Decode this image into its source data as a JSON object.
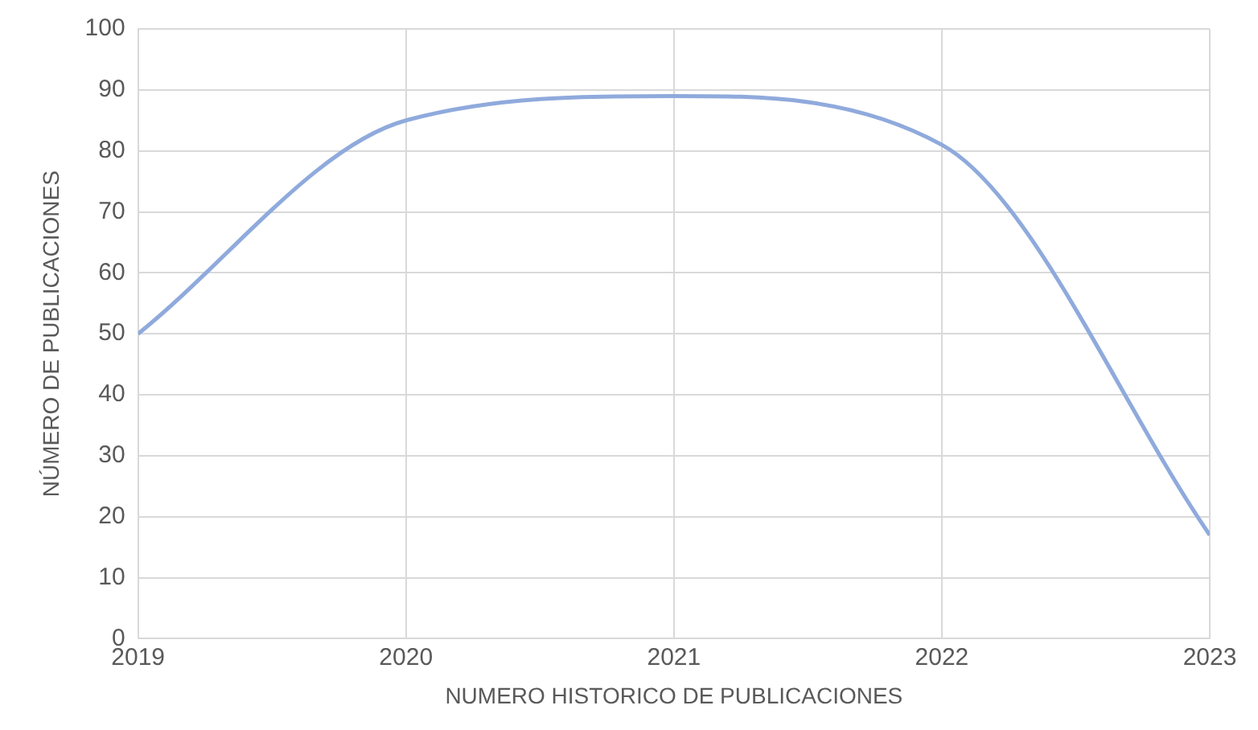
{
  "chart_data": {
    "type": "line",
    "xlabel": "NUMERO HISTORICO DE PUBLICACIONES",
    "ylabel": "NÚMERO DE PUBLICACIONES",
    "x": [
      2019,
      2020,
      2021,
      2022,
      2023
    ],
    "series": [
      {
        "color": "#8faadc",
        "values": [
          50,
          85,
          89,
          81,
          17
        ]
      }
    ],
    "xlim": [
      2019,
      2023
    ],
    "xticks": [
      2019,
      2020,
      2021,
      2022,
      2023
    ],
    "ylim": [
      0,
      100
    ],
    "yticks": [
      0,
      10,
      20,
      30,
      40,
      50,
      60,
      70,
      80,
      90,
      100
    ],
    "grid": true,
    "legend": false,
    "marker": "none",
    "line_style": "solid"
  }
}
